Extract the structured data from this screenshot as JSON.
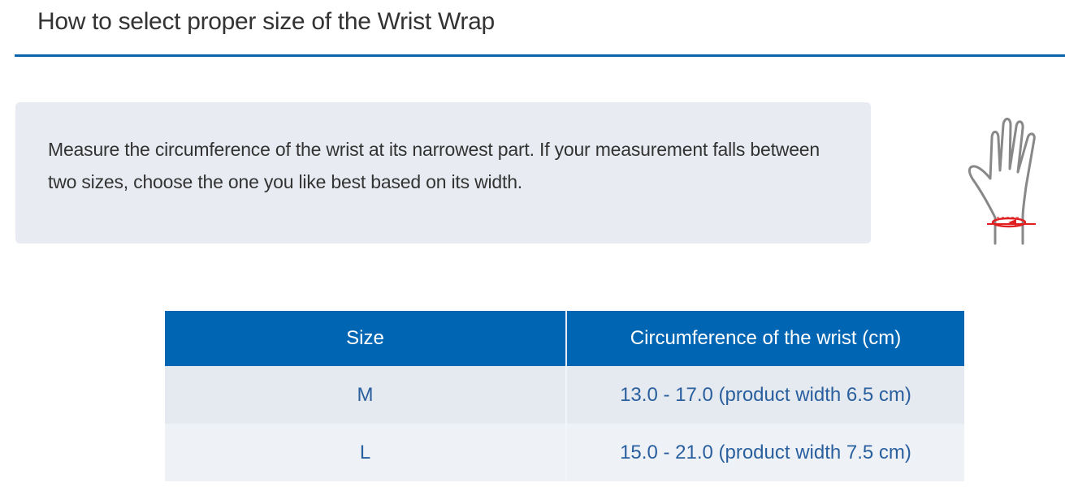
{
  "title": "How to select proper size of the Wrist Wrap",
  "instructions": "Measure the circumference of the wrist at its narrowest part. If your measurement falls between two sizes, choose the one you like best based on its width.",
  "illustration_icon": "hand-wrist-measurement-icon",
  "colors": {
    "accent": "#0066b3",
    "row_text": "#2a5f9e",
    "measure_line": "#e02020"
  },
  "table": {
    "headers": [
      "Size",
      "Circumference of the wrist (cm)"
    ],
    "rows": [
      {
        "size": "M",
        "range": "13.0 - 17.0 (product width 6.5 cm)"
      },
      {
        "size": "L",
        "range": "15.0 - 21.0 (product width 7.5 cm)"
      }
    ]
  }
}
